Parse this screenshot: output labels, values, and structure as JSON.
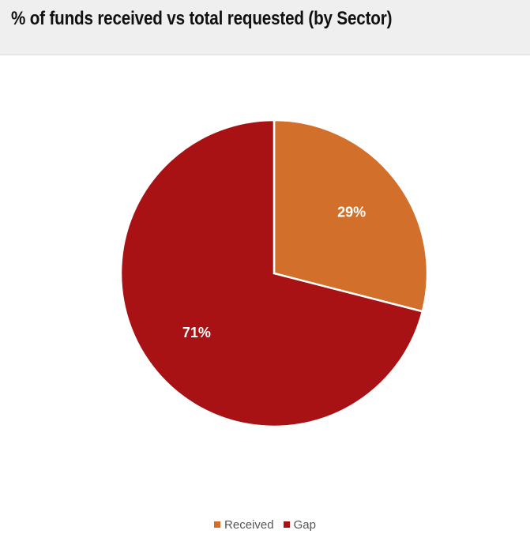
{
  "header": {
    "title": "% of funds received vs total requested (by Sector)"
  },
  "chart_data": {
    "type": "pie",
    "title": "% of funds received vs total requested (by Sector)",
    "categories": [
      "Received",
      "Gap"
    ],
    "values": [
      29,
      71
    ],
    "data_labels": [
      "29%",
      "71%"
    ],
    "colors": [
      "#d2702b",
      "#a81214"
    ],
    "start_angle": "12 o'clock, clockwise",
    "legend_position": "bottom"
  }
}
